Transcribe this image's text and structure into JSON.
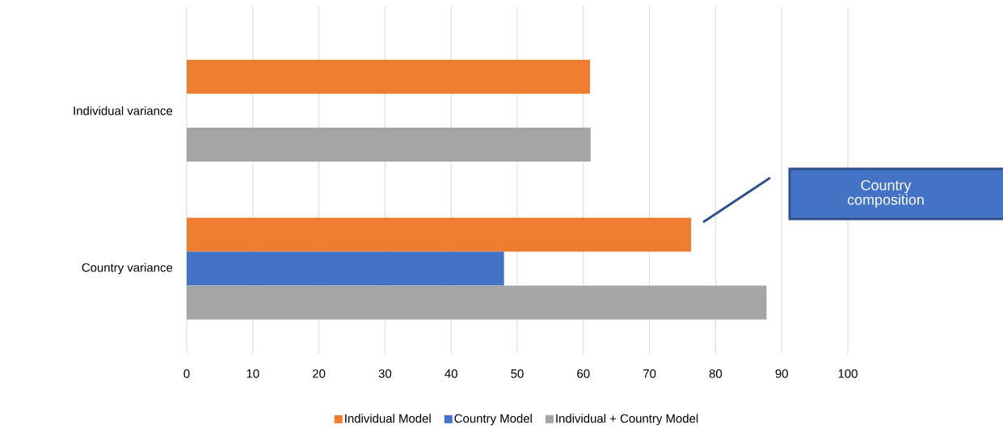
{
  "chart_data": {
    "type": "bar",
    "orientation": "horizontal",
    "categories": [
      "Individual variance",
      "Country variance"
    ],
    "series": [
      {
        "name": "Individual Model",
        "color": "#ed7d31",
        "values": [
          61.0,
          76.3
        ]
      },
      {
        "name": "Country Model",
        "color": "#4472c4",
        "values": [
          null,
          48.0
        ]
      },
      {
        "name": "Individual + Country Model",
        "color": "#a5a5a5",
        "values": [
          61.1,
          87.7
        ]
      }
    ],
    "xlim": [
      0,
      100
    ],
    "xticks": [
      0,
      10,
      20,
      30,
      40,
      50,
      60,
      70,
      80,
      90,
      100
    ],
    "grid": "x",
    "legend": "bottom",
    "annotations": [
      "Country composition"
    ]
  }
}
